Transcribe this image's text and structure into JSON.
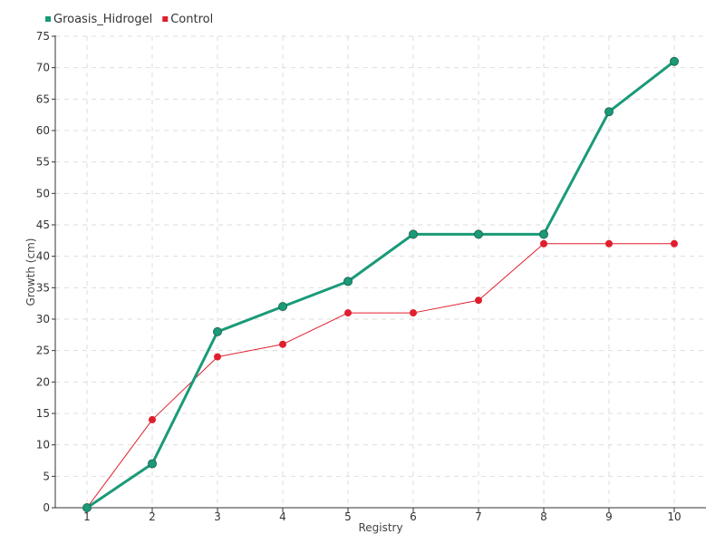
{
  "chart_data": {
    "type": "line",
    "x": [
      1,
      2,
      3,
      4,
      5,
      6,
      7,
      8,
      9,
      10
    ],
    "xlabel": "Registry",
    "ylabel": "Growth (cm)",
    "ylim": [
      0,
      75
    ],
    "yticks": [
      0,
      5,
      10,
      15,
      20,
      25,
      30,
      35,
      40,
      45,
      50,
      55,
      60,
      65,
      70,
      75
    ],
    "grid": true,
    "legend_position": "top-left",
    "series": [
      {
        "name": "Groasis_Hidrogel",
        "color": "#1a9a78",
        "values": [
          0,
          7,
          28,
          32,
          36,
          43.5,
          43.5,
          43.5,
          63,
          71
        ]
      },
      {
        "name": "Control",
        "color": "#e01e2d",
        "values": [
          0,
          14,
          24,
          26,
          31,
          31,
          33,
          42,
          42,
          42
        ]
      }
    ]
  }
}
